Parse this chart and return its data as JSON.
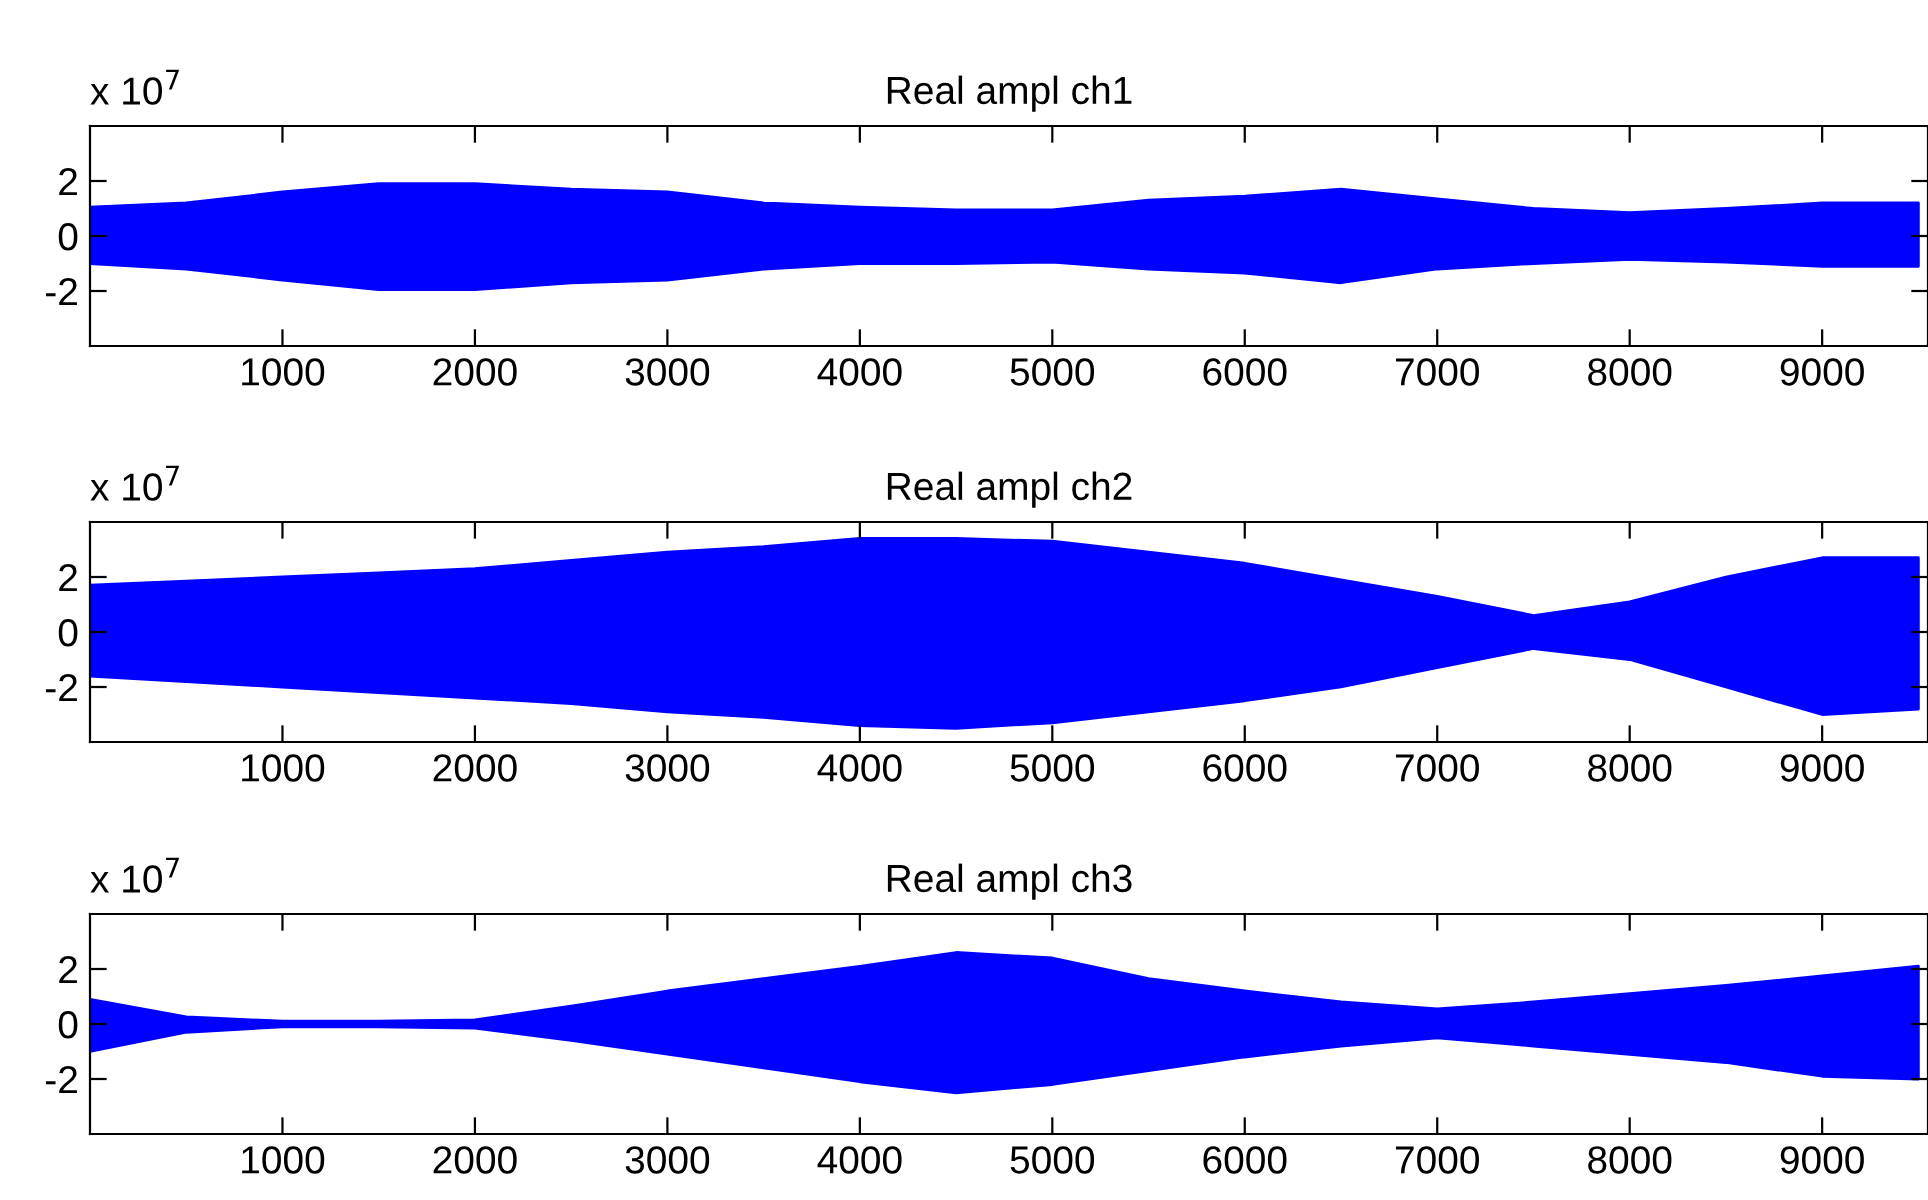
{
  "chart_data": [
    {
      "type": "area",
      "title": "Real ampl ch1",
      "annotations": [
        "x 10$^{7}$"
      ],
      "xlim": [
        0,
        9550
      ],
      "xticks": [
        1000,
        2000,
        3000,
        4000,
        5000,
        6000,
        7000,
        8000,
        9000
      ],
      "ylim": [
        -4,
        4
      ],
      "yticks": [
        -2,
        0,
        2
      ],
      "grid": false,
      "legend": false,
      "x": [
        0,
        500,
        1000,
        1500,
        2000,
        2500,
        3000,
        3500,
        4000,
        4500,
        5000,
        5500,
        6000,
        6500,
        7000,
        7500,
        8000,
        8500,
        9000,
        9500
      ],
      "series": [
        {
          "color": "#0000ff",
          "values": [
            1.05,
            1.2,
            1.6,
            1.9,
            1.9,
            1.7,
            1.6,
            1.2,
            1.05,
            0.95,
            0.95,
            1.3,
            1.45,
            1.7,
            1.35,
            1.0,
            0.85,
            1.0,
            1.2,
            1.2
          ]
        },
        {
          "color": "#0000ff",
          "values": [
            -1.0,
            -1.2,
            -1.6,
            -1.95,
            -1.95,
            -1.7,
            -1.6,
            -1.2,
            -1.0,
            -1.0,
            -0.95,
            -1.2,
            -1.35,
            -1.7,
            -1.2,
            -1.0,
            -0.85,
            -0.95,
            -1.1,
            -1.1
          ]
        }
      ]
    },
    {
      "type": "area",
      "title": "Real ampl ch2",
      "annotations": [
        "x 10$^{7}$"
      ],
      "xlim": [
        0,
        9550
      ],
      "xticks": [
        1000,
        2000,
        3000,
        4000,
        5000,
        6000,
        7000,
        8000,
        9000
      ],
      "ylim": [
        -4,
        4
      ],
      "yticks": [
        -2,
        0,
        2
      ],
      "grid": false,
      "legend": false,
      "x": [
        0,
        500,
        1000,
        1500,
        2000,
        2500,
        3000,
        3500,
        4000,
        4500,
        5000,
        5500,
        6000,
        6500,
        7000,
        7500,
        8000,
        8500,
        9000,
        9500
      ],
      "series": [
        {
          "color": "#0000ff",
          "values": [
            1.7,
            1.85,
            2.0,
            2.15,
            2.3,
            2.6,
            2.9,
            3.1,
            3.4,
            3.4,
            3.3,
            2.9,
            2.5,
            1.9,
            1.3,
            0.6,
            1.1,
            2.0,
            2.7,
            2.7
          ]
        },
        {
          "color": "#0000ff",
          "values": [
            -1.6,
            -1.8,
            -2.0,
            -2.2,
            -2.4,
            -2.6,
            -2.9,
            -3.1,
            -3.4,
            -3.5,
            -3.3,
            -2.9,
            -2.5,
            -2.0,
            -1.3,
            -0.6,
            -1.0,
            -2.0,
            -3.0,
            -2.8
          ]
        }
      ]
    },
    {
      "type": "area",
      "title": "Real ampl ch3",
      "annotations": [
        "x 10$^{7}$"
      ],
      "xlim": [
        0,
        9550
      ],
      "xticks": [
        1000,
        2000,
        3000,
        4000,
        5000,
        6000,
        7000,
        8000,
        9000
      ],
      "ylim": [
        -4,
        4
      ],
      "yticks": [
        -2,
        0,
        2
      ],
      "grid": false,
      "legend": false,
      "x": [
        0,
        500,
        1000,
        1500,
        2000,
        2500,
        3000,
        3500,
        4000,
        4500,
        5000,
        5500,
        6000,
        6500,
        7000,
        7500,
        8000,
        8500,
        9000,
        9500
      ],
      "series": [
        {
          "color": "#0000ff",
          "values": [
            0.9,
            0.26,
            0.1,
            0.1,
            0.15,
            0.65,
            1.2,
            1.65,
            2.1,
            2.6,
            2.4,
            1.65,
            1.2,
            0.8,
            0.55,
            0.8,
            1.1,
            1.4,
            1.75,
            2.1
          ]
        },
        {
          "color": "#0000ff",
          "values": [
            -1.0,
            -0.3,
            -0.1,
            -0.1,
            -0.15,
            -0.6,
            -1.1,
            -1.6,
            -2.1,
            -2.5,
            -2.2,
            -1.7,
            -1.2,
            -0.8,
            -0.5,
            -0.8,
            -1.1,
            -1.4,
            -1.9,
            -2.0
          ]
        }
      ]
    }
  ]
}
